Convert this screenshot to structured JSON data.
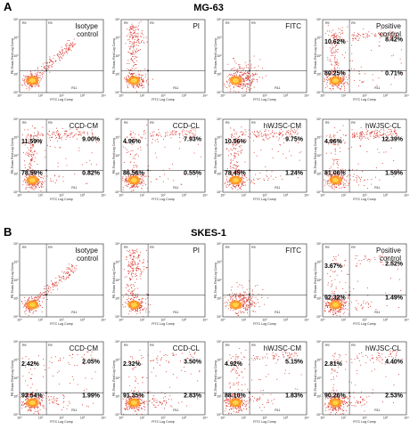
{
  "figure": {
    "sections": [
      {
        "letter": "A",
        "title": "MG-63",
        "rows": [
          [
            {
              "label": [
                "Isotype",
                "control"
              ],
              "kind": "diagonal",
              "q": {
                "ul": "",
                "ur": "",
                "ll": "",
                "lr": ""
              }
            },
            {
              "label": [
                "PI"
              ],
              "kind": "pi",
              "q": {
                "ul": "",
                "ur": "",
                "ll": "",
                "lr": ""
              }
            },
            {
              "label": [
                "FITC"
              ],
              "kind": "cluster",
              "q": {
                "ul": "",
                "ur": "",
                "ll": "",
                "lr": ""
              }
            },
            {
              "label": [
                "Positive",
                "control"
              ],
              "kind": "apop",
              "q": {
                "ul": "10.62%",
                "ur": "8.42%",
                "ll": "80.25%",
                "lr": "0.71%"
              }
            }
          ],
          [
            {
              "label": [
                "CCD-CM"
              ],
              "kind": "apop",
              "q": {
                "ul": "11.59%",
                "ur": "9.00%",
                "ll": "78.59%",
                "lr": "0.82%"
              }
            },
            {
              "label": [
                "CCD-CL"
              ],
              "kind": "apop",
              "q": {
                "ul": "4.96%",
                "ur": "7.93%",
                "ll": "86.56%",
                "lr": "0.55%"
              }
            },
            {
              "label": [
                "hWJSC-CM"
              ],
              "kind": "apop",
              "q": {
                "ul": "10.56%",
                "ur": "9.75%",
                "ll": "78.45%",
                "lr": "1.24%"
              }
            },
            {
              "label": [
                "hWJSC-CL"
              ],
              "kind": "apop",
              "q": {
                "ul": "4.96%",
                "ur": "12.39%",
                "ll": "81.06%",
                "lr": "1.59%"
              }
            }
          ]
        ]
      },
      {
        "letter": "B",
        "title": "SKES-1",
        "rows": [
          [
            {
              "label": [
                "Isotype",
                "control"
              ],
              "kind": "diagonal",
              "q": {
                "ul": "",
                "ur": "",
                "ll": "",
                "lr": ""
              }
            },
            {
              "label": [
                "PI"
              ],
              "kind": "pi",
              "q": {
                "ul": "",
                "ur": "",
                "ll": "",
                "lr": ""
              }
            },
            {
              "label": [
                "FITC"
              ],
              "kind": "cluster",
              "q": {
                "ul": "",
                "ur": "",
                "ll": "",
                "lr": ""
              }
            },
            {
              "label": [
                "Positive",
                "control"
              ],
              "kind": "apop",
              "q": {
                "ul": "3.67%",
                "ur": "2.52%",
                "ll": "92.32%",
                "lr": "1.49%"
              }
            }
          ],
          [
            {
              "label": [
                "CCD-CM"
              ],
              "kind": "apop",
              "q": {
                "ul": "2.42%",
                "ur": "2.05%",
                "ll": "93.54%",
                "lr": "1.99%"
              }
            },
            {
              "label": [
                "CCD-CL"
              ],
              "kind": "apop",
              "q": {
                "ul": "2.32%",
                "ur": "3.50%",
                "ll": "91.35%",
                "lr": "2.83%"
              }
            },
            {
              "label": [
                "hWJSC-CM"
              ],
              "kind": "apop",
              "q": {
                "ul": "4.92%",
                "ur": "5.15%",
                "ll": "88.10%",
                "lr": "1.83%"
              }
            },
            {
              "label": [
                "hWJSC-CL"
              ],
              "kind": "apop",
              "q": {
                "ul": "2.81%",
                "ur": "4.40%",
                "ll": "90.26%",
                "lr": "2.53%"
              }
            }
          ]
        ]
      }
    ],
    "axis": {
      "xlabel": "FITC Log Comp",
      "ylabel": "PE-Texas Red Log Comp",
      "ticks": [
        "10⁰",
        "10¹",
        "10²",
        "10³",
        "10⁴"
      ]
    },
    "gates": {
      "r9": "R9",
      "r11": "R11"
    },
    "colors": {
      "dot": "#d8342c",
      "dense": "#ff9a1a",
      "core": "#ffd84a",
      "line": "#222222"
    }
  }
}
